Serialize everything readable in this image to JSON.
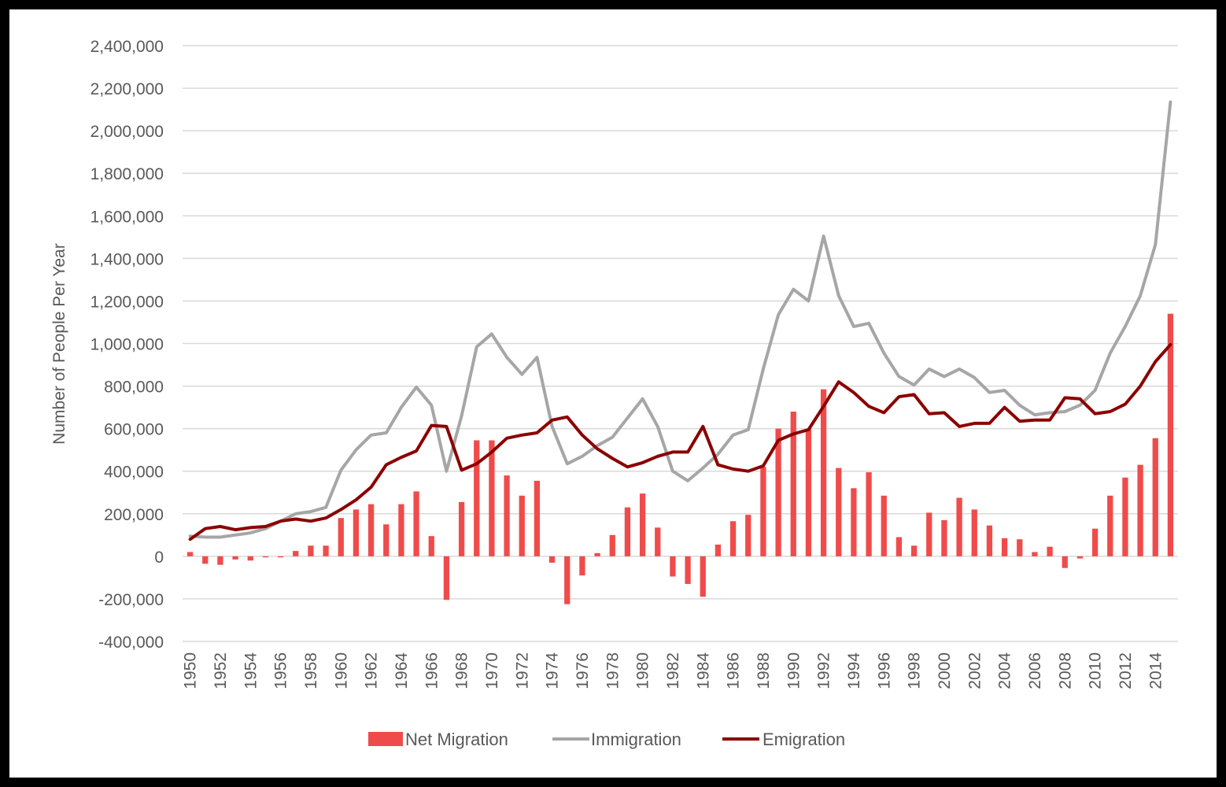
{
  "chart_data": {
    "type": "bar",
    "title": "",
    "xlabel": "",
    "ylabel": "Number of People Per Year",
    "ylim": [
      -400000,
      2400000
    ],
    "y_ticks": [
      {
        "value": 2400000,
        "label": "2,400,000"
      },
      {
        "value": 2200000,
        "label": "2,200,000"
      },
      {
        "value": 2000000,
        "label": "2,000,000"
      },
      {
        "value": 1800000,
        "label": "1,800,000"
      },
      {
        "value": 1600000,
        "label": "1,600,000"
      },
      {
        "value": 1400000,
        "label": "1,400,000"
      },
      {
        "value": 1200000,
        "label": "1,200,000"
      },
      {
        "value": 1000000,
        "label": "1,000,000"
      },
      {
        "value": 800000,
        "label": "800,000"
      },
      {
        "value": 600000,
        "label": "600,000"
      },
      {
        "value": 400000,
        "label": "400,000"
      },
      {
        "value": 200000,
        "label": "200,000"
      },
      {
        "value": 0,
        "label": "0"
      },
      {
        "value": -200000,
        "label": "-200,000"
      },
      {
        "value": -400000,
        "label": "-400,000"
      }
    ],
    "x": [
      1950,
      1951,
      1952,
      1953,
      1954,
      1955,
      1956,
      1957,
      1958,
      1959,
      1960,
      1961,
      1962,
      1963,
      1964,
      1965,
      1966,
      1967,
      1968,
      1969,
      1970,
      1971,
      1972,
      1973,
      1974,
      1975,
      1976,
      1977,
      1978,
      1979,
      1980,
      1981,
      1982,
      1983,
      1984,
      1985,
      1986,
      1987,
      1988,
      1989,
      1990,
      1991,
      1992,
      1993,
      1994,
      1995,
      1996,
      1997,
      1998,
      1999,
      2000,
      2001,
      2002,
      2003,
      2004,
      2005,
      2006,
      2007,
      2008,
      2009,
      2010,
      2011,
      2012,
      2013,
      2014,
      2015
    ],
    "x_tick_labels": [
      "1950",
      "1952",
      "1954",
      "1956",
      "1958",
      "1960",
      "1962",
      "1964",
      "1966",
      "1968",
      "1970",
      "1972",
      "1974",
      "1976",
      "1978",
      "1980",
      "1982",
      "1984",
      "1986",
      "1988",
      "1990",
      "1992",
      "1994",
      "1996",
      "1998",
      "2000",
      "2002",
      "2004",
      "2006",
      "2008",
      "2010",
      "2012",
      "2014"
    ],
    "grid": true,
    "legend_position": "bottom",
    "series": [
      {
        "name": "Net Migration",
        "type": "bar",
        "color": "#f04b4b",
        "values": [
          20000,
          -35000,
          -40000,
          -15000,
          -20000,
          -5000,
          -5000,
          25000,
          50000,
          50000,
          180000,
          220000,
          245000,
          150000,
          245000,
          305000,
          95000,
          -205000,
          255000,
          545000,
          545000,
          380000,
          285000,
          355000,
          -30000,
          -225000,
          -90000,
          15000,
          100000,
          230000,
          295000,
          135000,
          -95000,
          -130000,
          -190000,
          55000,
          165000,
          195000,
          420000,
          600000,
          680000,
          600000,
          785000,
          415000,
          320000,
          395000,
          285000,
          90000,
          50000,
          205000,
          170000,
          275000,
          220000,
          145000,
          85000,
          80000,
          20000,
          45000,
          -55000,
          -10000,
          130000,
          285000,
          370000,
          430000,
          555000,
          1140000
        ]
      },
      {
        "name": "Immigration",
        "type": "line",
        "color": "#a6a6a6",
        "values": [
          95000,
          90000,
          90000,
          100000,
          110000,
          130000,
          165000,
          200000,
          210000,
          230000,
          405000,
          500000,
          570000,
          580000,
          700000,
          795000,
          710000,
          400000,
          660000,
          985000,
          1045000,
          935000,
          855000,
          935000,
          610000,
          435000,
          470000,
          520000,
          560000,
          650000,
          740000,
          610000,
          400000,
          355000,
          415000,
          480000,
          570000,
          595000,
          880000,
          1135000,
          1255000,
          1200000,
          1505000,
          1225000,
          1080000,
          1095000,
          955000,
          845000,
          805000,
          880000,
          845000,
          880000,
          840000,
          770000,
          780000,
          710000,
          665000,
          675000,
          680000,
          710000,
          780000,
          955000,
          1080000,
          1225000,
          1465000,
          2135000
        ]
      },
      {
        "name": "Emigration",
        "type": "line",
        "color": "#8b0000",
        "values": [
          80000,
          130000,
          140000,
          125000,
          135000,
          140000,
          165000,
          175000,
          165000,
          180000,
          220000,
          265000,
          325000,
          430000,
          465000,
          495000,
          615000,
          610000,
          405000,
          435000,
          490000,
          555000,
          570000,
          580000,
          640000,
          655000,
          570000,
          505000,
          460000,
          420000,
          440000,
          470000,
          490000,
          490000,
          610000,
          430000,
          410000,
          400000,
          425000,
          545000,
          575000,
          595000,
          705000,
          820000,
          770000,
          705000,
          675000,
          750000,
          760000,
          670000,
          675000,
          610000,
          625000,
          625000,
          700000,
          635000,
          640000,
          640000,
          745000,
          740000,
          670000,
          680000,
          715000,
          800000,
          915000,
          995000
        ]
      }
    ]
  }
}
